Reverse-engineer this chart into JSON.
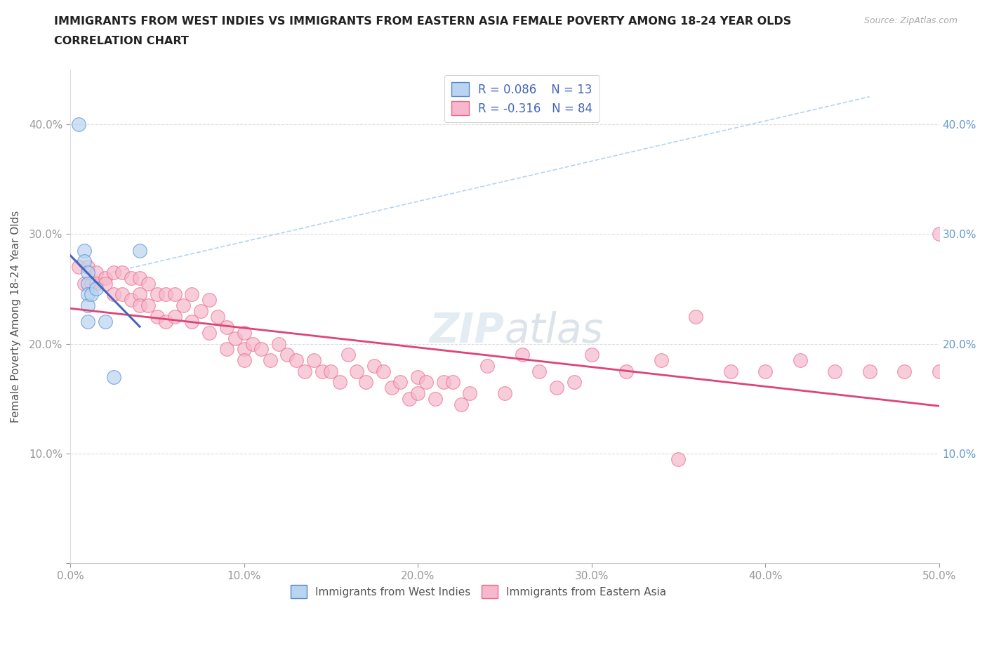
{
  "title_line1": "IMMIGRANTS FROM WEST INDIES VS IMMIGRANTS FROM EASTERN ASIA FEMALE POVERTY AMONG 18-24 YEAR OLDS",
  "title_line2": "CORRELATION CHART",
  "source_text": "Source: ZipAtlas.com",
  "ylabel": "Female Poverty Among 18-24 Year Olds",
  "xlim": [
    0.0,
    0.5
  ],
  "ylim": [
    0.0,
    0.45
  ],
  "legend_label1": "Immigrants from West Indies",
  "legend_label2": "Immigrants from Eastern Asia",
  "blue_fill": "#b8d4f0",
  "pink_fill": "#f5b8cc",
  "blue_edge": "#5588cc",
  "pink_edge": "#ee6688",
  "blue_line": "#4466bb",
  "pink_line": "#dd4477",
  "blue_dash": "#aaccee",
  "watermark_color": "#ccdde8",
  "west_indies_x": [
    0.005,
    0.008,
    0.008,
    0.01,
    0.01,
    0.01,
    0.01,
    0.01,
    0.012,
    0.015,
    0.02,
    0.025,
    0.04
  ],
  "west_indies_y": [
    0.4,
    0.285,
    0.275,
    0.265,
    0.255,
    0.245,
    0.235,
    0.22,
    0.245,
    0.25,
    0.22,
    0.17,
    0.285
  ],
  "eastern_asia_x": [
    0.005,
    0.008,
    0.01,
    0.012,
    0.015,
    0.015,
    0.02,
    0.02,
    0.025,
    0.025,
    0.03,
    0.03,
    0.035,
    0.035,
    0.04,
    0.04,
    0.04,
    0.045,
    0.045,
    0.05,
    0.05,
    0.055,
    0.055,
    0.06,
    0.06,
    0.065,
    0.07,
    0.07,
    0.075,
    0.08,
    0.08,
    0.085,
    0.09,
    0.09,
    0.095,
    0.1,
    0.1,
    0.1,
    0.105,
    0.11,
    0.115,
    0.12,
    0.125,
    0.13,
    0.135,
    0.14,
    0.145,
    0.15,
    0.155,
    0.16,
    0.165,
    0.17,
    0.175,
    0.18,
    0.185,
    0.19,
    0.195,
    0.2,
    0.205,
    0.21,
    0.215,
    0.22,
    0.225,
    0.23,
    0.24,
    0.25,
    0.26,
    0.27,
    0.28,
    0.29,
    0.3,
    0.32,
    0.34,
    0.36,
    0.38,
    0.4,
    0.42,
    0.44,
    0.46,
    0.48,
    0.5,
    0.5,
    0.2,
    0.35
  ],
  "eastern_asia_y": [
    0.27,
    0.255,
    0.27,
    0.255,
    0.265,
    0.255,
    0.26,
    0.255,
    0.265,
    0.245,
    0.265,
    0.245,
    0.26,
    0.24,
    0.26,
    0.245,
    0.235,
    0.255,
    0.235,
    0.245,
    0.225,
    0.245,
    0.22,
    0.245,
    0.225,
    0.235,
    0.245,
    0.22,
    0.23,
    0.24,
    0.21,
    0.225,
    0.215,
    0.195,
    0.205,
    0.21,
    0.195,
    0.185,
    0.2,
    0.195,
    0.185,
    0.2,
    0.19,
    0.185,
    0.175,
    0.185,
    0.175,
    0.175,
    0.165,
    0.19,
    0.175,
    0.165,
    0.18,
    0.175,
    0.16,
    0.165,
    0.15,
    0.17,
    0.165,
    0.15,
    0.165,
    0.165,
    0.145,
    0.155,
    0.18,
    0.155,
    0.19,
    0.175,
    0.16,
    0.165,
    0.19,
    0.175,
    0.185,
    0.225,
    0.175,
    0.175,
    0.185,
    0.175,
    0.175,
    0.175,
    0.175,
    0.3,
    0.155,
    0.095
  ]
}
